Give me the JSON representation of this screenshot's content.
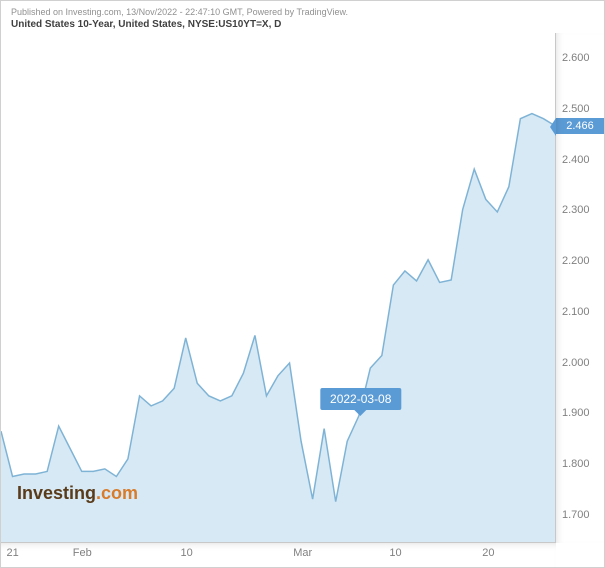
{
  "header": {
    "published": "Published on Investing.com, 13/Nov/2022 - 22:47:10 GMT, Powered by TradingView.",
    "title": "United States 10-Year, United States, NYSE:US10YT=X, D"
  },
  "chart": {
    "type": "area",
    "background_color": "#ffffff",
    "line_color": "#7fb3d5",
    "fill_color": "#d6e9f5",
    "grid_color": "#c8c8c8",
    "font_size": 11,
    "tick_color": "#808080",
    "y_axis": {
      "min": 1.64,
      "max": 2.65,
      "ticks": [
        1.7,
        1.8,
        1.9,
        2.0,
        2.1,
        2.2,
        2.3,
        2.4,
        2.5,
        2.6
      ],
      "tick_labels": [
        "1.700",
        "1.800",
        "1.900",
        "2.000",
        "2.100",
        "2.200",
        "2.300",
        "2.400",
        "2.500",
        "2.600"
      ]
    },
    "x_axis": {
      "tick_positions": [
        1,
        7,
        16,
        26,
        34,
        42
      ],
      "tick_labels": [
        "21",
        "Feb",
        "10",
        "Mar",
        "10",
        "20"
      ],
      "count": 49
    },
    "series": [
      1.86,
      1.77,
      1.775,
      1.775,
      1.78,
      1.87,
      1.825,
      1.78,
      1.78,
      1.785,
      1.77,
      1.805,
      1.93,
      1.91,
      1.92,
      1.945,
      2.045,
      1.955,
      1.93,
      1.92,
      1.93,
      1.975,
      2.05,
      1.93,
      1.97,
      1.995,
      1.84,
      1.725,
      1.865,
      1.72,
      1.84,
      1.89,
      1.985,
      2.01,
      2.15,
      2.178,
      2.158,
      2.2,
      2.155,
      2.16,
      2.3,
      2.38,
      2.32,
      2.295,
      2.345,
      2.48,
      2.49,
      2.48,
      2.466
    ],
    "last_value": 2.466,
    "last_value_label": "2.466",
    "flag_bg": "#5b9bd5",
    "flag_fg": "#ffffff",
    "tooltip": {
      "index": 31,
      "label": "2022-03-08",
      "y_value": 1.89
    }
  },
  "branding": {
    "text_a": "Investing",
    "text_b": ".com",
    "color_a": "#5a3b1a",
    "color_b": "#d97b29"
  }
}
